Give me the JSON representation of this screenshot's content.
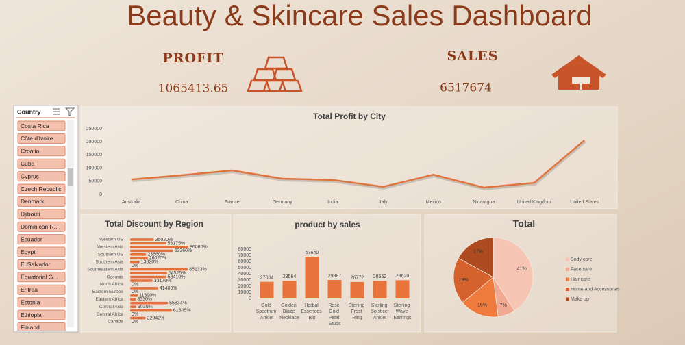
{
  "header": {
    "title": "Beauty & Skincare Sales Dashboard"
  },
  "kpis": [
    {
      "label": "PROFIT",
      "value": 1065413.65
    },
    {
      "label": "SALES",
      "value": 6517674
    }
  ],
  "slicer": {
    "title": "Country",
    "items": [
      "Costa Rica",
      "Côte d'Ivoire",
      "Croatia",
      "Cuba",
      "Cyprus",
      "Czech Republic",
      "Denmark",
      "Djibouti",
      "Dominican R...",
      "Ecuador",
      "Egypt",
      "El Salvador",
      "Equatorial G...",
      "Eritrea",
      "Estonia",
      "Ethiopia",
      "Finland"
    ]
  },
  "chart_data": [
    {
      "type": "line",
      "title": "Total Profit by City",
      "categories": [
        "Australia",
        "China",
        "France",
        "Germany",
        "India",
        "Italy",
        "Mexico",
        "Nicaragua",
        "United Kingdom",
        "United States"
      ],
      "values": [
        57000,
        73000,
        91000,
        60000,
        55000,
        29000,
        75000,
        26000,
        44000,
        206000
      ],
      "color": "#e0743f",
      "ylim": [
        0,
        250000
      ],
      "yticks": [
        0,
        50000,
        100000,
        150000,
        200000,
        250000
      ],
      "grid": false
    },
    {
      "type": "bar",
      "orientation": "horizontal",
      "title": "Total Discount by Region",
      "categories": [
        "Western US",
        null,
        "Western Asia",
        null,
        "Southern US",
        null,
        "Southern Asia",
        null,
        "Southeastern Asia",
        null,
        "Oceania",
        null,
        "North Africa",
        null,
        "Eastern Europe",
        null,
        "Eastern Africa",
        null,
        "Central Asia",
        null,
        "Central Africa",
        null,
        "Canada"
      ],
      "values": [
        35020,
        53175,
        86080,
        63360,
        23660,
        26020,
        13820,
        0,
        85133,
        54525,
        53410,
        33170,
        0,
        41400,
        0,
        11390,
        8530,
        55834,
        9030,
        61645,
        0,
        22942,
        0
      ],
      "value_labels": [
        "35020%",
        "53175%",
        "86080%",
        "63360%",
        "23660%",
        "26020%",
        "13820%",
        "0%",
        "85133%",
        "54525%",
        "53410%",
        "33170%",
        "0%",
        "41400%",
        "0%",
        "11390%",
        "8530%",
        "55834%",
        "9030%",
        "61645%",
        "0%",
        "22942%",
        "0%"
      ],
      "color": "#e4703c"
    },
    {
      "type": "bar",
      "orientation": "vertical",
      "title": "product by sales",
      "categories": [
        "Gold Spectrum Anklet",
        "Golden Blaze Necklace",
        "Herbal Essences Bio",
        "Rose Gold Petal Studs",
        "Sterling Frost Ring",
        "Sterling Solstice Anklet",
        "Sterling Wave Earrings"
      ],
      "values": [
        27004,
        28564,
        67640,
        29987,
        26772,
        28552,
        29620
      ],
      "color": "#e8743b",
      "ylim": [
        0,
        80000
      ],
      "yticks": [
        0,
        10000,
        20000,
        30000,
        40000,
        50000,
        60000,
        70000,
        80000
      ],
      "grid": false
    },
    {
      "type": "pie",
      "title": "Total",
      "categories": [
        "Body care",
        "Face care",
        "Hair care",
        "Home and Accessories",
        "Make up"
      ],
      "values": [
        41,
        7,
        16,
        19,
        17
      ],
      "value_labels": [
        "41%",
        "7%",
        "16%",
        "19%",
        "17%"
      ],
      "colors": [
        "#f6c5b4",
        "#f0a993",
        "#ee7b3d",
        "#d5612d",
        "#ad4a1f"
      ],
      "legend": "right"
    }
  ]
}
